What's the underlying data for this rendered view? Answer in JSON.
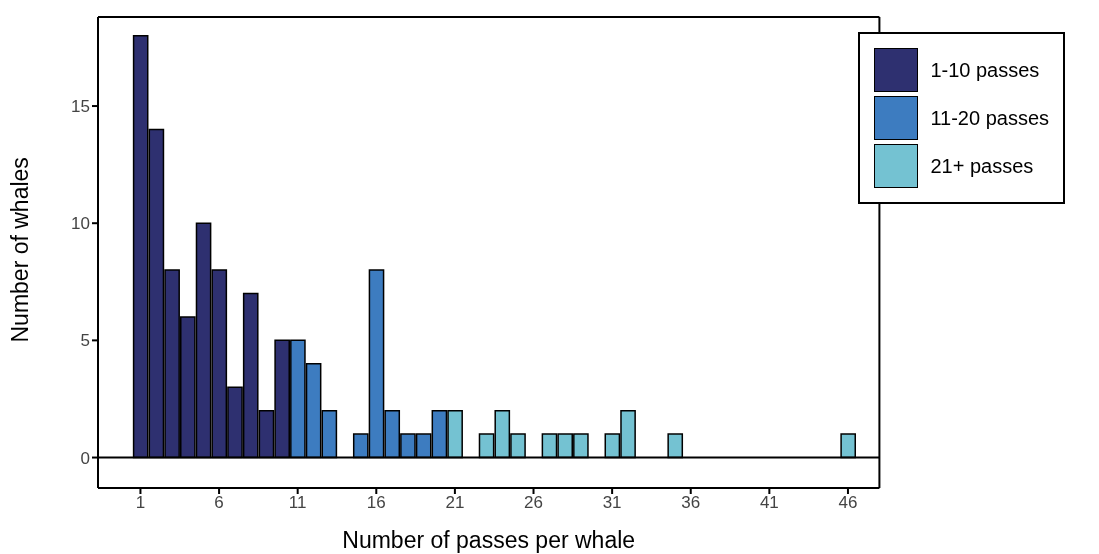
{
  "chart_data": {
    "type": "bar",
    "xlabel": "Number of passes per whale",
    "ylabel": "Number of whales",
    "series": [
      {
        "name": "1-10 passes",
        "color": "#2e3070",
        "x": [
          1,
          2,
          3,
          4,
          5,
          6,
          7,
          8,
          9,
          10
        ],
        "values": [
          18,
          14,
          8,
          6,
          10,
          8,
          3,
          7,
          2,
          5
        ]
      },
      {
        "name": "11-20 passes",
        "color": "#3d7cc0",
        "x": [
          11,
          12,
          13,
          15,
          16,
          17,
          18,
          19,
          20
        ],
        "values": [
          5,
          4,
          2,
          1,
          8,
          2,
          1,
          1,
          2
        ]
      },
      {
        "name": "21+ passes",
        "color": "#74c2d2",
        "x": [
          21,
          23,
          24,
          25,
          27,
          28,
          29,
          31,
          32,
          35,
          46
        ],
        "values": [
          2,
          1,
          2,
          1,
          1,
          1,
          1,
          1,
          2,
          1,
          1
        ]
      }
    ],
    "xlim": [
      -1.7,
      48
    ],
    "xticks": [
      1,
      6,
      11,
      16,
      21,
      26,
      31,
      36,
      41,
      46
    ],
    "ylim": [
      -1.3,
      18.8
    ],
    "yticks": [
      0,
      5,
      10,
      15
    ],
    "ref_lines": [
      {
        "axis": "y",
        "value": 0,
        "color": "#000000"
      }
    ],
    "grid": false,
    "legend": "top right"
  }
}
